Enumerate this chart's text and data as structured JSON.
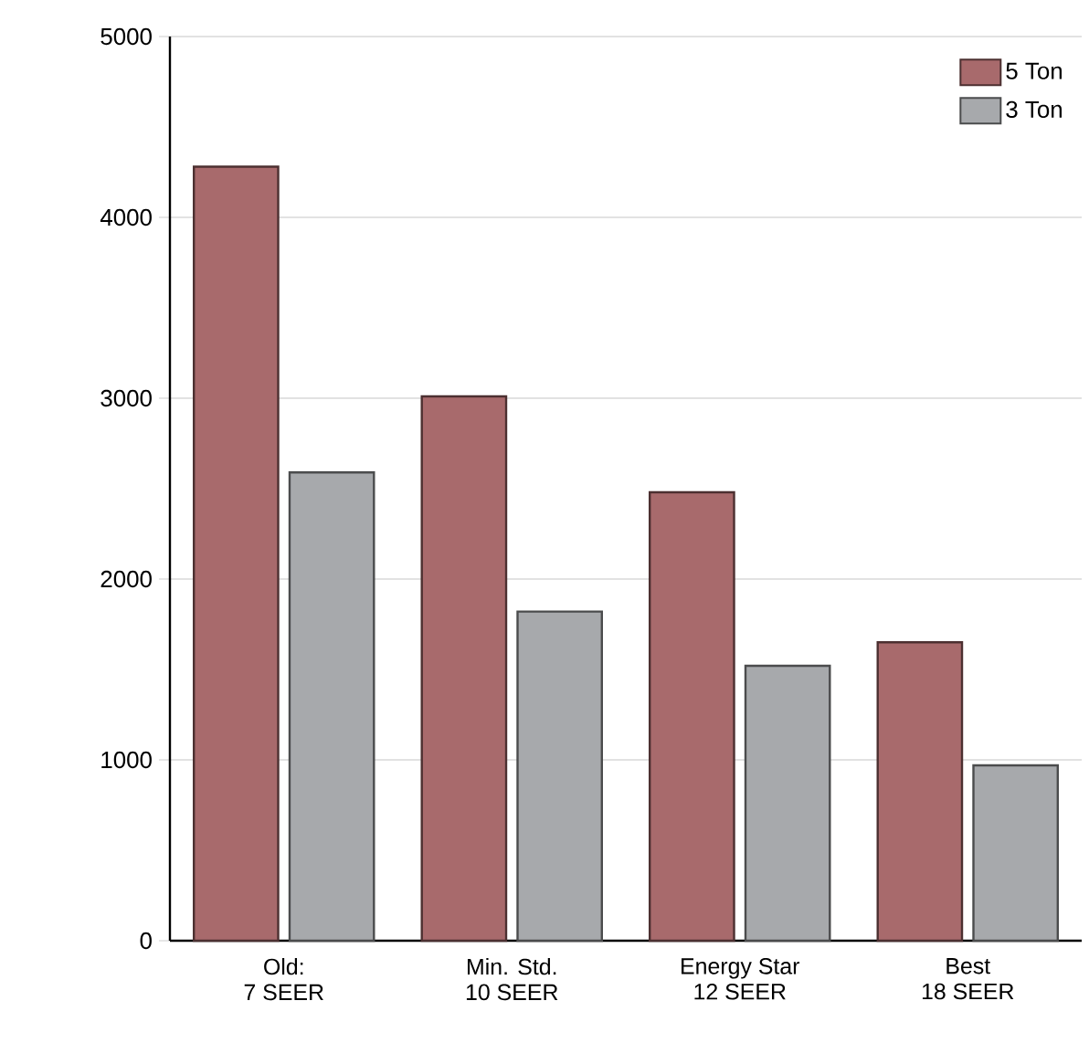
{
  "chart_data": {
    "type": "bar",
    "categories": [
      "Old:\n7 SEER",
      "Min. Std.\n10 SEER",
      "Energy Star\n12 SEER",
      "Best\n18 SEER"
    ],
    "series": [
      {
        "name": "5 Ton",
        "color": "#a86a6c",
        "values": [
          4280,
          3010,
          2480,
          1650
        ]
      },
      {
        "name": "3 Ton",
        "color": "#a7a9ac",
        "values": [
          2590,
          1820,
          1520,
          970
        ]
      }
    ],
    "ylim": [
      0,
      5000
    ],
    "yticks": [
      0,
      1000,
      2000,
      3000,
      4000,
      5000
    ],
    "grid": "y",
    "legend": "top right"
  }
}
